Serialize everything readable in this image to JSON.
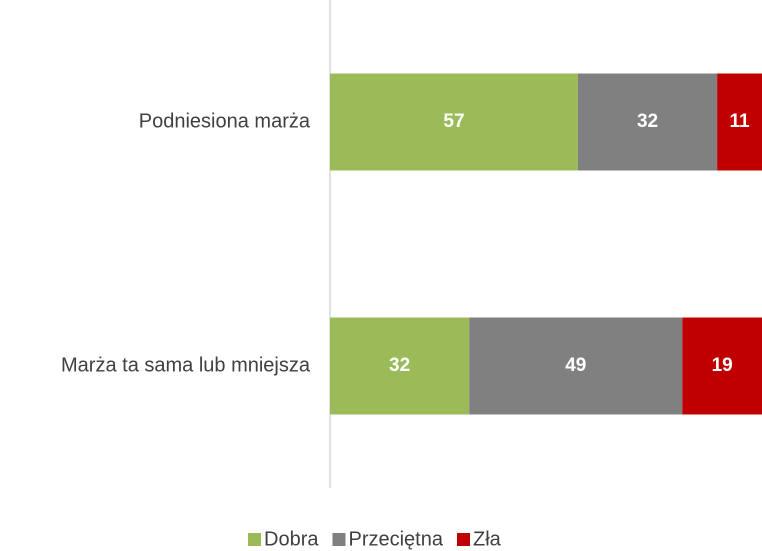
{
  "chart_data": {
    "type": "stacked-bar-horizontal",
    "categories": [
      "Podniesiona marża",
      "Marża ta sama lub mniejsza"
    ],
    "series": [
      {
        "name": "Dobra",
        "color": "#9bbb59",
        "values": [
          57,
          32
        ]
      },
      {
        "name": "Przeciętna",
        "color": "#808080",
        "values": [
          32,
          49
        ]
      },
      {
        "name": "Zła",
        "color": "#c00000",
        "values": [
          11,
          19
        ]
      }
    ],
    "xlim": [
      0,
      100
    ],
    "legend": "bottom"
  }
}
